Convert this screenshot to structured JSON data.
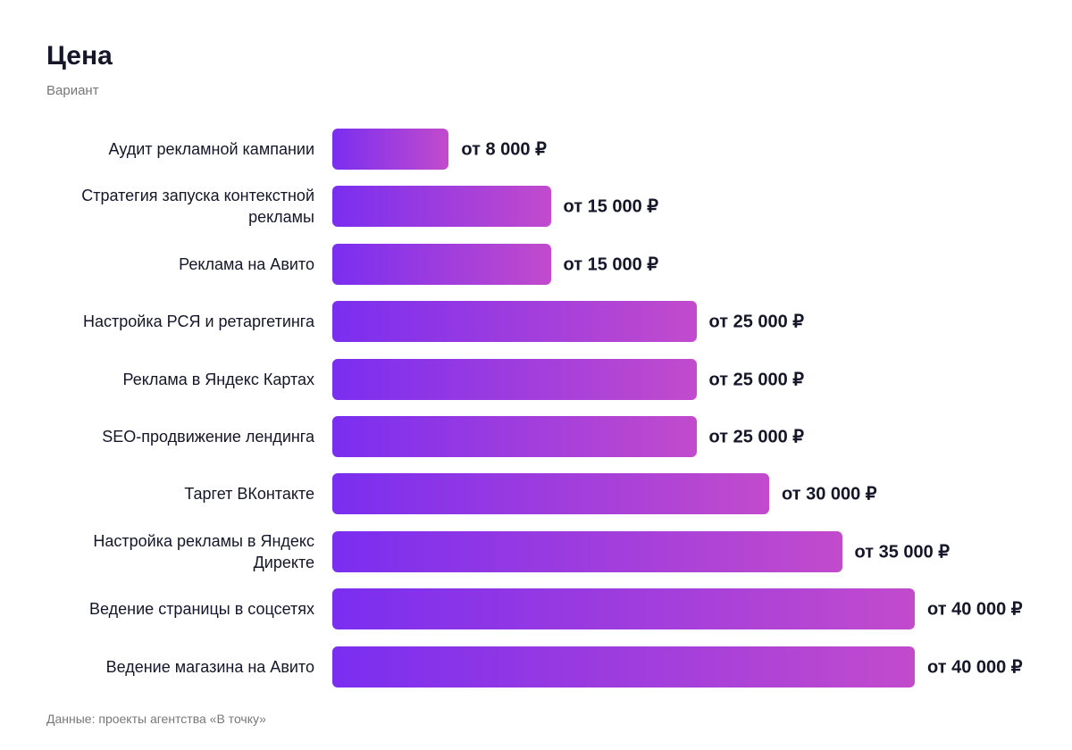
{
  "chart_data": {
    "type": "bar",
    "orientation": "horizontal",
    "title": "Цена",
    "subtitle": "Вариант",
    "source": "Данные: проекты агентства «В точку»",
    "categories": [
      "Аудит рекламной кампании",
      "Стратегия запуска контекстной рекламы",
      "Реклама на Авито",
      "Настройка РСЯ и ретаргетинга",
      "Реклама в Яндекс Картах",
      "SEO-продвижение лендинга",
      "Таргет ВКонтакте",
      "Настройка рекламы в Яндекс Директе",
      "Ведение страницы в соцсетях",
      "Ведение магазина на Авито"
    ],
    "values": [
      8000,
      15000,
      15000,
      25000,
      25000,
      25000,
      30000,
      35000,
      40000,
      40000
    ],
    "value_labels": [
      "от 8 000 ₽",
      "от 15 000 ₽",
      "от 15 000 ₽",
      "от 25 000 ₽",
      "от 25 000 ₽",
      "от 25 000 ₽",
      "от 30 000 ₽",
      "от 35 000 ₽",
      "от 40 000 ₽",
      "от 40 000 ₽"
    ],
    "colors": [
      "#7a2ef0",
      "#c24bcc"
    ]
  }
}
